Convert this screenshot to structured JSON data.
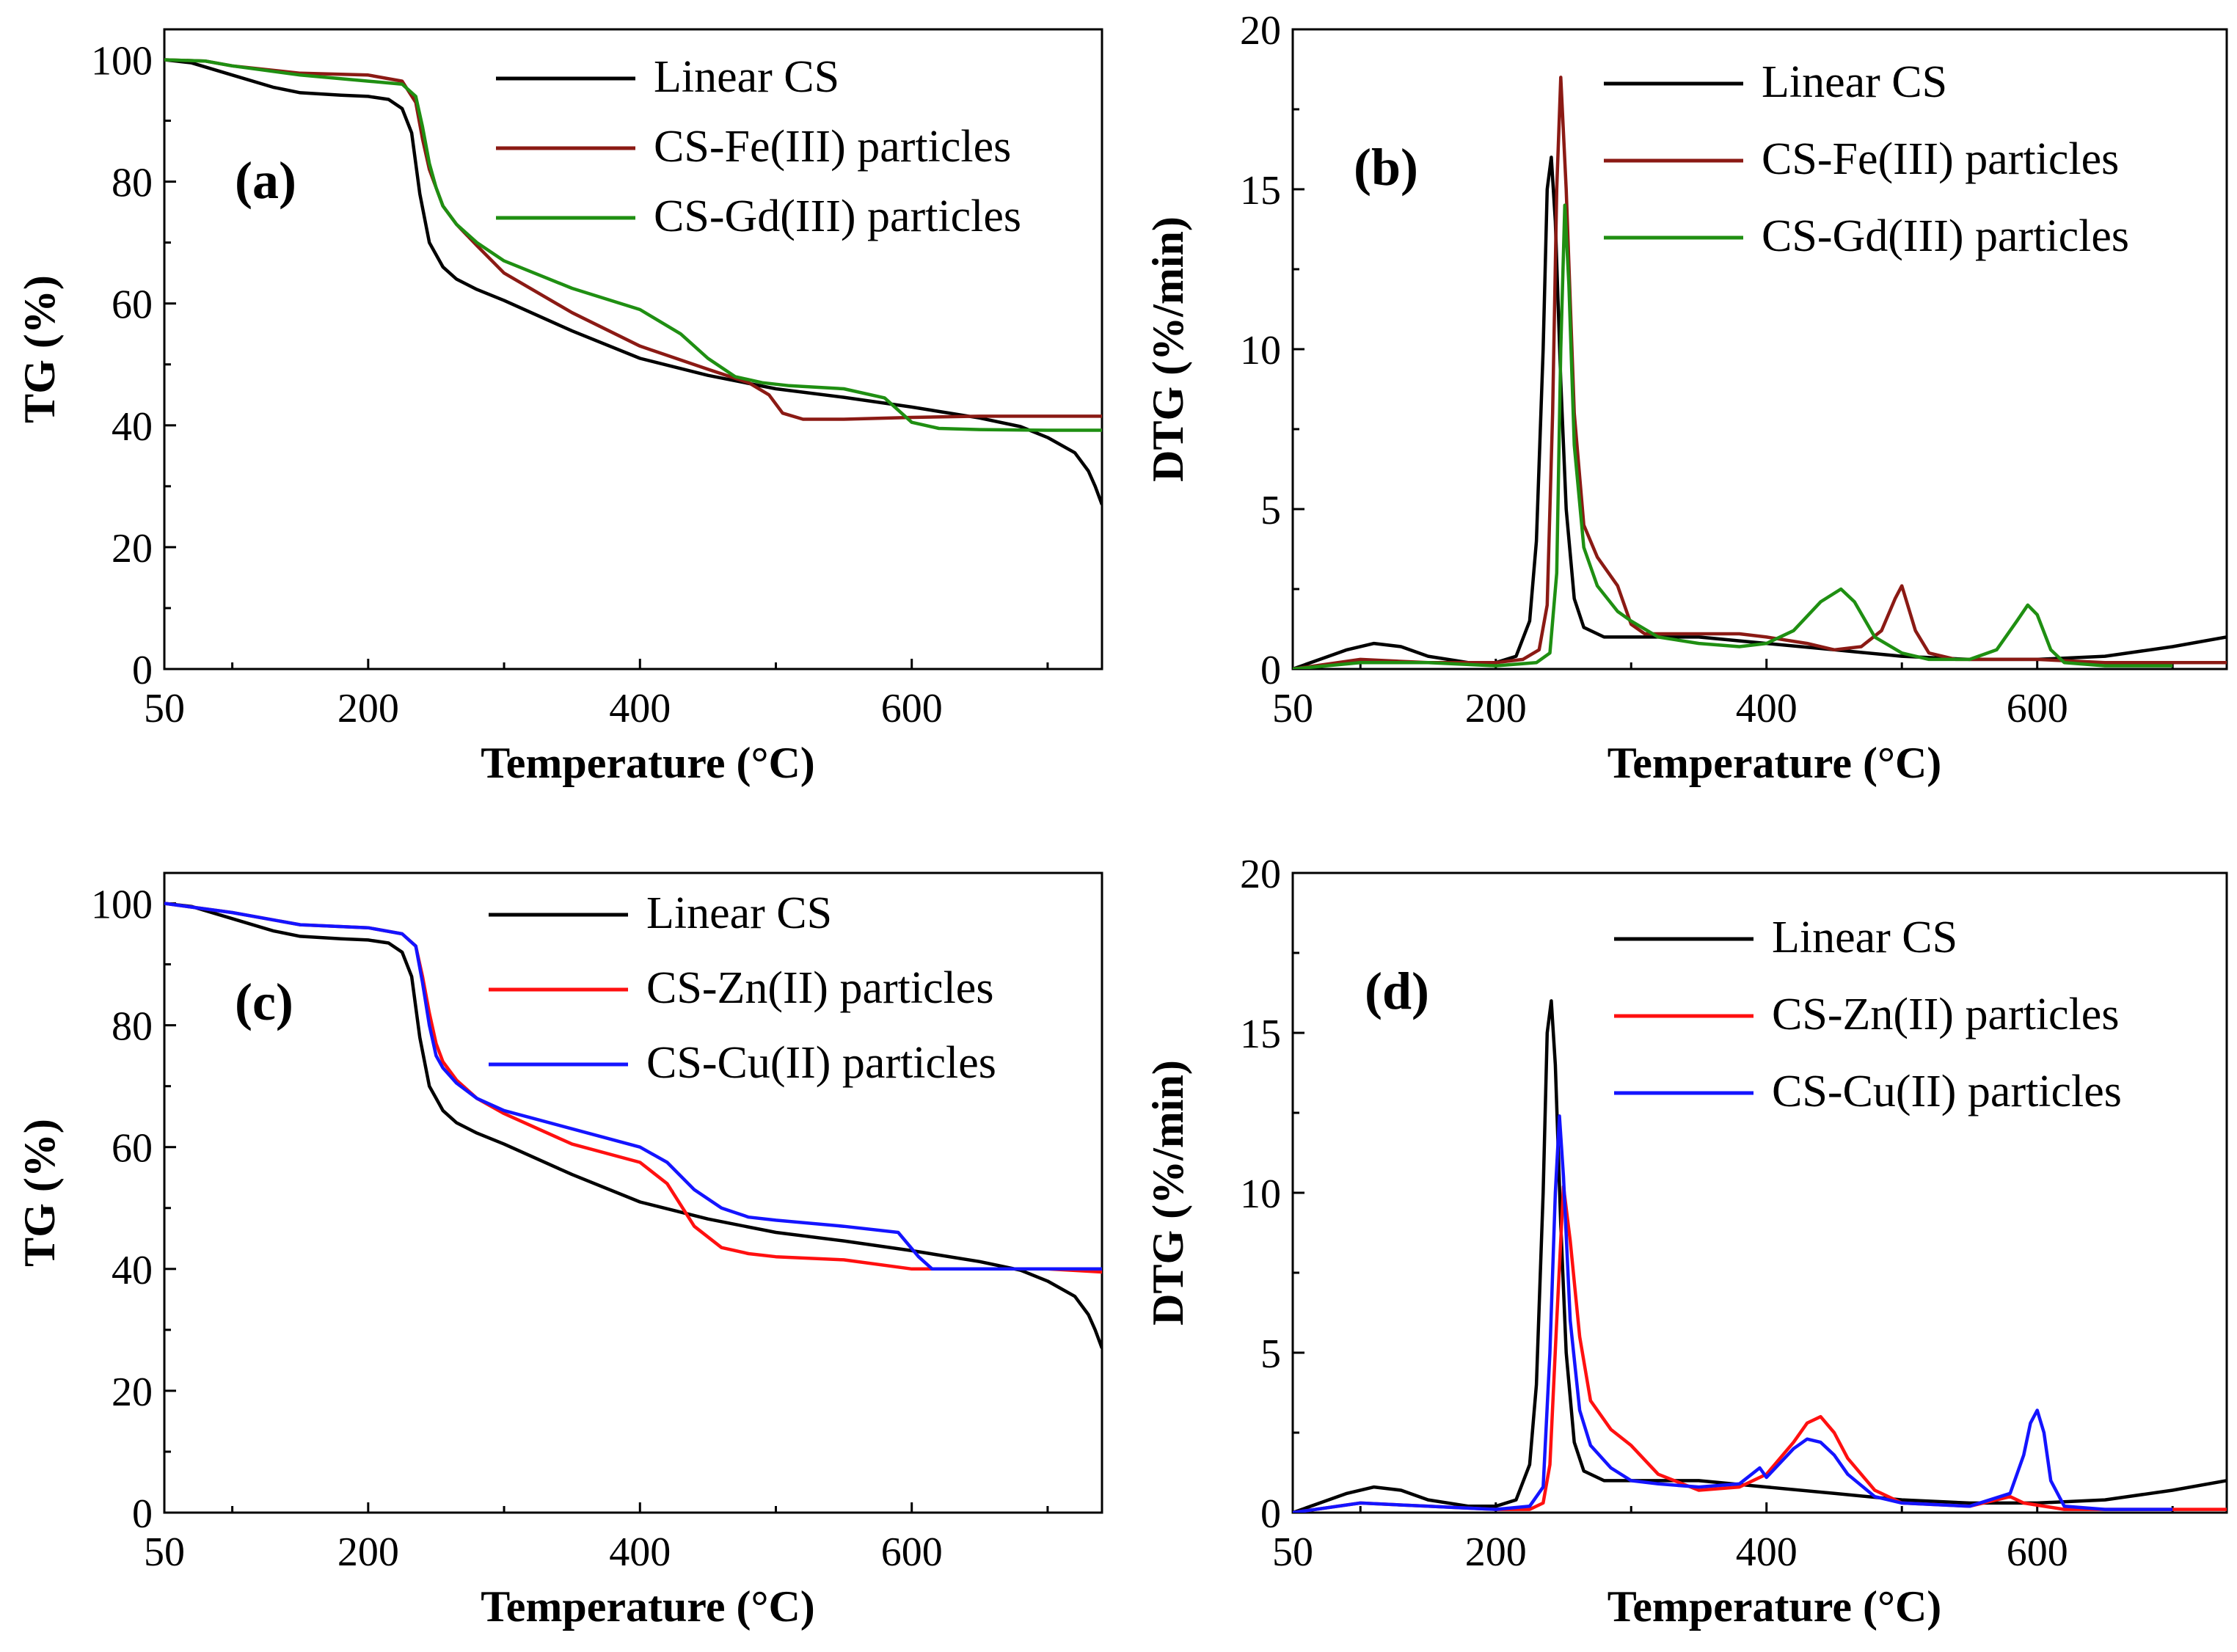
{
  "chart_data": [
    {
      "id": "a",
      "type": "line",
      "panel_label": "(a)",
      "xlabel": "Temperature (°C)",
      "ylabel": "TG (%)",
      "xlim": [
        50,
        740
      ],
      "ylim": [
        0,
        105
      ],
      "xticks": [
        50,
        200,
        400,
        600
      ],
      "yticks": [
        0,
        20,
        40,
        60,
        80,
        100
      ],
      "legend": "top-right",
      "series": [
        {
          "name": "Linear CS",
          "color": "#000000",
          "x": [
            50,
            70,
            100,
            130,
            150,
            180,
            200,
            215,
            225,
            232,
            238,
            245,
            255,
            265,
            280,
            300,
            350,
            400,
            450,
            500,
            550,
            600,
            650,
            680,
            700,
            720,
            730,
            735,
            740
          ],
          "y": [
            100,
            99.5,
            97.5,
            95.5,
            94.6,
            94.2,
            94,
            93.5,
            92,
            88,
            78,
            70,
            66,
            64,
            62.3,
            60.5,
            55.5,
            51,
            48.2,
            46,
            44.6,
            43,
            41.2,
            39.8,
            38,
            35.5,
            32.5,
            30,
            27
          ]
        },
        {
          "name": "CS-Fe(III) particles",
          "color": "#8b1a14",
          "x": [
            50,
            80,
            100,
            150,
            200,
            225,
            235,
            240,
            245,
            250,
            255,
            265,
            280,
            300,
            350,
            400,
            450,
            480,
            495,
            505,
            520,
            550,
            600,
            650,
            700,
            740
          ],
          "y": [
            100,
            99.8,
            99,
            97.8,
            97.5,
            96.5,
            93,
            87,
            82,
            79,
            76,
            73,
            69.5,
            65,
            58.5,
            53,
            49.2,
            47,
            45,
            42,
            41,
            41,
            41.3,
            41.5,
            41.5,
            41.5
          ]
        },
        {
          "name": "CS-Gd(III) particles",
          "color": "#1f8f12",
          "x": [
            50,
            80,
            100,
            150,
            200,
            225,
            235,
            240,
            245,
            250,
            255,
            265,
            280,
            300,
            350,
            400,
            430,
            450,
            470,
            490,
            510,
            550,
            580,
            600,
            620,
            650,
            700,
            740
          ],
          "y": [
            100,
            99.8,
            99,
            97.5,
            96.5,
            96,
            94,
            89,
            83,
            79,
            76,
            73,
            70,
            67,
            62.5,
            59,
            55,
            51,
            48,
            47,
            46.5,
            46,
            44.5,
            40.5,
            39.5,
            39.3,
            39.2,
            39.2
          ]
        }
      ]
    },
    {
      "id": "b",
      "type": "line",
      "panel_label": "(b)",
      "xlabel": "Temperature (°C)",
      "ylabel": "DTG (%/min)",
      "xlim": [
        50,
        740
      ],
      "ylim": [
        0,
        20
      ],
      "xticks": [
        50,
        200,
        400,
        600
      ],
      "yticks": [
        0,
        5,
        10,
        15,
        20
      ],
      "legend": "top-right",
      "series": [
        {
          "name": "Linear CS",
          "color": "#000000",
          "x": [
            50,
            70,
            90,
            110,
            130,
            150,
            180,
            200,
            215,
            225,
            230,
            235,
            238,
            241,
            244,
            248,
            252,
            258,
            265,
            280,
            300,
            350,
            400,
            450,
            500,
            550,
            600,
            650,
            700,
            740
          ],
          "y": [
            0,
            0.3,
            0.6,
            0.8,
            0.7,
            0.4,
            0.2,
            0.2,
            0.4,
            1.5,
            4,
            10,
            15,
            16,
            14,
            9,
            5,
            2.2,
            1.3,
            1,
            1,
            1,
            0.8,
            0.6,
            0.4,
            0.3,
            0.3,
            0.4,
            0.7,
            1
          ]
        },
        {
          "name": "CS-Fe(III) particles",
          "color": "#8b1a14",
          "x": [
            50,
            100,
            150,
            200,
            220,
            232,
            238,
            242,
            245,
            248,
            252,
            258,
            265,
            275,
            290,
            300,
            310,
            330,
            350,
            380,
            400,
            430,
            450,
            470,
            485,
            495,
            500,
            510,
            520,
            540,
            560,
            600,
            650,
            700,
            740
          ],
          "y": [
            0,
            0.3,
            0.2,
            0.2,
            0.3,
            0.6,
            2,
            8,
            15,
            18.5,
            15,
            8,
            4.5,
            3.5,
            2.6,
            1.4,
            1.1,
            1.1,
            1.1,
            1.1,
            1.0,
            0.8,
            0.6,
            0.7,
            1.2,
            2.2,
            2.6,
            1.2,
            0.5,
            0.3,
            0.3,
            0.3,
            0.2,
            0.2,
            0.2
          ]
        },
        {
          "name": "CS-Gd(III) particles",
          "color": "#1f8f12",
          "x": [
            50,
            100,
            150,
            200,
            230,
            240,
            245,
            248,
            251,
            254,
            258,
            265,
            275,
            290,
            300,
            320,
            350,
            380,
            400,
            420,
            440,
            455,
            465,
            480,
            500,
            520,
            550,
            570,
            585,
            593,
            600,
            610,
            620,
            650,
            700
          ],
          "y": [
            0,
            0.2,
            0.2,
            0.1,
            0.2,
            0.5,
            3,
            10,
            14.5,
            12,
            7,
            3.8,
            2.6,
            1.8,
            1.5,
            1.0,
            0.8,
            0.7,
            0.8,
            1.2,
            2.1,
            2.5,
            2.1,
            1.0,
            0.5,
            0.3,
            0.3,
            0.6,
            1.5,
            2.0,
            1.7,
            0.6,
            0.2,
            0.1,
            0.1
          ]
        }
      ]
    },
    {
      "id": "c",
      "type": "line",
      "panel_label": "(c)",
      "xlabel": "Temperature (°C)",
      "ylabel": "TG (%)",
      "xlim": [
        50,
        740
      ],
      "ylim": [
        0,
        105
      ],
      "xticks": [
        50,
        200,
        400,
        600
      ],
      "yticks": [
        0,
        20,
        40,
        60,
        80,
        100
      ],
      "legend": "top-right",
      "series": [
        {
          "name": "Linear CS",
          "color": "#000000",
          "x": [
            50,
            70,
            100,
            130,
            150,
            180,
            200,
            215,
            225,
            232,
            238,
            245,
            255,
            265,
            280,
            300,
            350,
            400,
            450,
            500,
            550,
            600,
            650,
            680,
            700,
            720,
            730,
            735,
            740
          ],
          "y": [
            100,
            99.5,
            97.5,
            95.5,
            94.6,
            94.2,
            94,
            93.5,
            92,
            88,
            78,
            70,
            66,
            64,
            62.3,
            60.5,
            55.5,
            51,
            48.2,
            46,
            44.6,
            43,
            41.2,
            39.8,
            38,
            35.5,
            32.5,
            30,
            27
          ]
        },
        {
          "name": "CS-Zn(II) particles",
          "color": "#ff1010",
          "x": [
            50,
            100,
            150,
            200,
            225,
            235,
            240,
            245,
            250,
            255,
            265,
            280,
            300,
            350,
            400,
            420,
            440,
            460,
            480,
            500,
            550,
            600,
            650,
            700,
            740
          ],
          "y": [
            100,
            98.5,
            96.5,
            96,
            95,
            93,
            88,
            82,
            77,
            74,
            71,
            68,
            65.5,
            60.5,
            57.5,
            54,
            47,
            43.5,
            42.5,
            42,
            41.5,
            40,
            40,
            40,
            39.5
          ]
        },
        {
          "name": "CS-Cu(II) particles",
          "color": "#1414ff",
          "x": [
            50,
            100,
            150,
            200,
            225,
            235,
            240,
            245,
            250,
            255,
            265,
            280,
            300,
            350,
            400,
            420,
            440,
            460,
            480,
            500,
            550,
            590,
            605,
            615,
            650,
            700,
            740
          ],
          "y": [
            100,
            98.5,
            96.5,
            96,
            95,
            93,
            87,
            80,
            75,
            73,
            70.5,
            68,
            66,
            63,
            60,
            57.5,
            53,
            50,
            48.5,
            48,
            47,
            46,
            42,
            40,
            40,
            40,
            40
          ]
        }
      ]
    },
    {
      "id": "d",
      "type": "line",
      "panel_label": "(d)",
      "xlabel": "Temperature (°C)",
      "ylabel": "DTG (%/min)",
      "xlim": [
        50,
        740
      ],
      "ylim": [
        0,
        20
      ],
      "xticks": [
        50,
        200,
        400,
        600
      ],
      "yticks": [
        0,
        5,
        10,
        15,
        20
      ],
      "legend": "top-right",
      "series": [
        {
          "name": "Linear CS",
          "color": "#000000",
          "x": [
            50,
            70,
            90,
            110,
            130,
            150,
            180,
            200,
            215,
            225,
            230,
            235,
            238,
            241,
            244,
            248,
            252,
            258,
            265,
            280,
            300,
            350,
            400,
            450,
            500,
            550,
            600,
            650,
            700,
            740
          ],
          "y": [
            0,
            0.3,
            0.6,
            0.8,
            0.7,
            0.4,
            0.2,
            0.2,
            0.4,
            1.5,
            4,
            10,
            15,
            16,
            14,
            9,
            5,
            2.2,
            1.3,
            1,
            1,
            1,
            0.8,
            0.6,
            0.4,
            0.3,
            0.3,
            0.4,
            0.7,
            1
          ]
        },
        {
          "name": "CS-Zn(II) particles",
          "color": "#ff1010",
          "x": [
            50,
            100,
            150,
            200,
            225,
            235,
            240,
            245,
            250,
            255,
            262,
            270,
            285,
            300,
            320,
            350,
            380,
            400,
            420,
            430,
            440,
            450,
            460,
            480,
            500,
            550,
            570,
            580,
            590,
            620,
            650,
            700,
            740
          ],
          "y": [
            0,
            0.3,
            0.2,
            0.1,
            0.1,
            0.3,
            1.5,
            6,
            10.2,
            8.5,
            5.5,
            3.5,
            2.6,
            2.1,
            1.2,
            0.7,
            0.8,
            1.2,
            2.2,
            2.8,
            3.0,
            2.5,
            1.7,
            0.7,
            0.3,
            0.2,
            0.4,
            0.5,
            0.3,
            0.1,
            0.1,
            0.1,
            0.1
          ]
        },
        {
          "name": "CS-Cu(II) particles",
          "color": "#1414ff",
          "x": [
            50,
            100,
            150,
            200,
            225,
            235,
            240,
            244,
            247,
            250,
            255,
            262,
            270,
            285,
            300,
            320,
            350,
            380,
            395,
            400,
            420,
            430,
            440,
            450,
            460,
            480,
            500,
            550,
            580,
            590,
            595,
            600,
            605,
            610,
            620,
            650,
            700
          ],
          "y": [
            0,
            0.3,
            0.2,
            0.1,
            0.2,
            0.8,
            5,
            10,
            12.4,
            10.5,
            6,
            3.2,
            2.1,
            1.4,
            1.0,
            0.9,
            0.8,
            0.9,
            1.4,
            1.1,
            2.0,
            2.3,
            2.2,
            1.8,
            1.2,
            0.5,
            0.3,
            0.2,
            0.6,
            1.8,
            2.8,
            3.2,
            2.5,
            1.0,
            0.2,
            0.1,
            0.1
          ]
        }
      ]
    }
  ]
}
